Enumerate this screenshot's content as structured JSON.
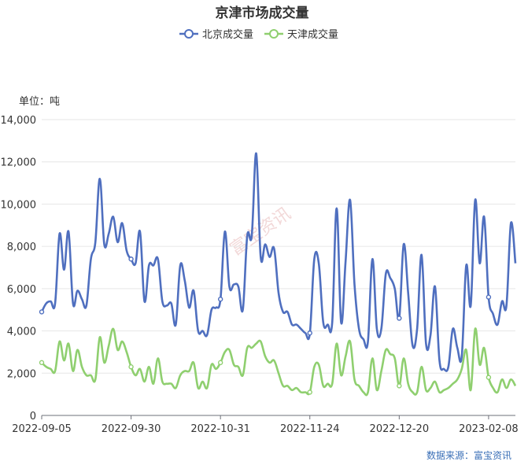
{
  "chart_data": {
    "type": "line",
    "title": "京津市场成交量",
    "unit_label": "单位：吨",
    "source": "数据来源：富宝资讯",
    "watermark": "富宝资讯",
    "legend_position": "top-center",
    "ylim": [
      0,
      14000
    ],
    "yticks": [
      0,
      2000,
      4000,
      6000,
      8000,
      10000,
      12000,
      14000
    ],
    "ytick_labels": [
      "0",
      "2,000",
      "4,000",
      "6,000",
      "8,000",
      "10,000",
      "12,000",
      "14,000"
    ],
    "xtick_labels": [
      "2022-09-05",
      "2022-09-30",
      "2022-10-31",
      "2022-11-24",
      "2022-12-20",
      "2023-02-08"
    ],
    "xtick_index": [
      0,
      20,
      40,
      60,
      80,
      100
    ],
    "grid": "horizontal",
    "series": [
      {
        "name": "北京成交量",
        "color": "#4f6fbf",
        "values": [
          4900,
          5300,
          5400,
          5300,
          8600,
          6900,
          8700,
          5300,
          5900,
          5500,
          5200,
          7400,
          8200,
          11200,
          8100,
          8600,
          9400,
          8200,
          9100,
          7800,
          7400,
          7200,
          8700,
          5400,
          7100,
          7100,
          7400,
          5400,
          5200,
          5300,
          4300,
          7100,
          6400,
          5100,
          5900,
          4000,
          4000,
          3800,
          5000,
          5100,
          5500,
          8700,
          6100,
          6200,
          6100,
          5000,
          8500,
          8500,
          12400,
          7500,
          8100,
          7500,
          7900,
          5800,
          4900,
          4900,
          4300,
          4300,
          4100,
          3900,
          3900,
          7400,
          7200,
          4400,
          4300,
          4400,
          9800,
          4400,
          7300,
          10200,
          6200,
          4100,
          3600,
          3500,
          7400,
          4100,
          4100,
          6700,
          6500,
          6000,
          4600,
          8100,
          5800,
          3300,
          4100,
          7600,
          3400,
          3800,
          6100,
          2600,
          2200,
          2300,
          4100,
          3200,
          2800,
          7100,
          5200,
          10200,
          7200,
          9400,
          5600,
          4800,
          4300,
          5400,
          5200,
          9100,
          7200
        ],
        "marker_indices": [
          0,
          20,
          40,
          60,
          80,
          100
        ]
      },
      {
        "name": "天津成交量",
        "color": "#8fcf6f",
        "values": [
          2500,
          2300,
          2200,
          2100,
          3500,
          2600,
          3400,
          2100,
          3100,
          2300,
          1900,
          1900,
          1700,
          3700,
          2500,
          3300,
          4100,
          3100,
          3500,
          3000,
          2300,
          1900,
          2200,
          1600,
          2300,
          1500,
          2700,
          1600,
          1500,
          1500,
          1300,
          1900,
          2100,
          2100,
          2500,
          1300,
          1600,
          1300,
          2400,
          2200,
          2500,
          3000,
          3100,
          2400,
          2300,
          1900,
          3200,
          3200,
          3400,
          3500,
          2800,
          2500,
          2600,
          2000,
          1400,
          1400,
          1200,
          1300,
          1100,
          1100,
          1100,
          2300,
          2400,
          1400,
          1500,
          1500,
          3400,
          1900,
          2800,
          3500,
          1700,
          1400,
          1100,
          1100,
          2700,
          1200,
          2100,
          3100,
          2900,
          2700,
          1400,
          2700,
          1500,
          1100,
          1100,
          2300,
          1200,
          1300,
          1600,
          1100,
          1200,
          1300,
          1500,
          1700,
          2200,
          3100,
          1200,
          4100,
          2400,
          3200,
          1800,
          1300,
          1100,
          1700,
          1300,
          1700,
          1400
        ],
        "marker_indices": [
          0,
          20,
          40,
          60,
          80,
          100
        ]
      }
    ]
  }
}
